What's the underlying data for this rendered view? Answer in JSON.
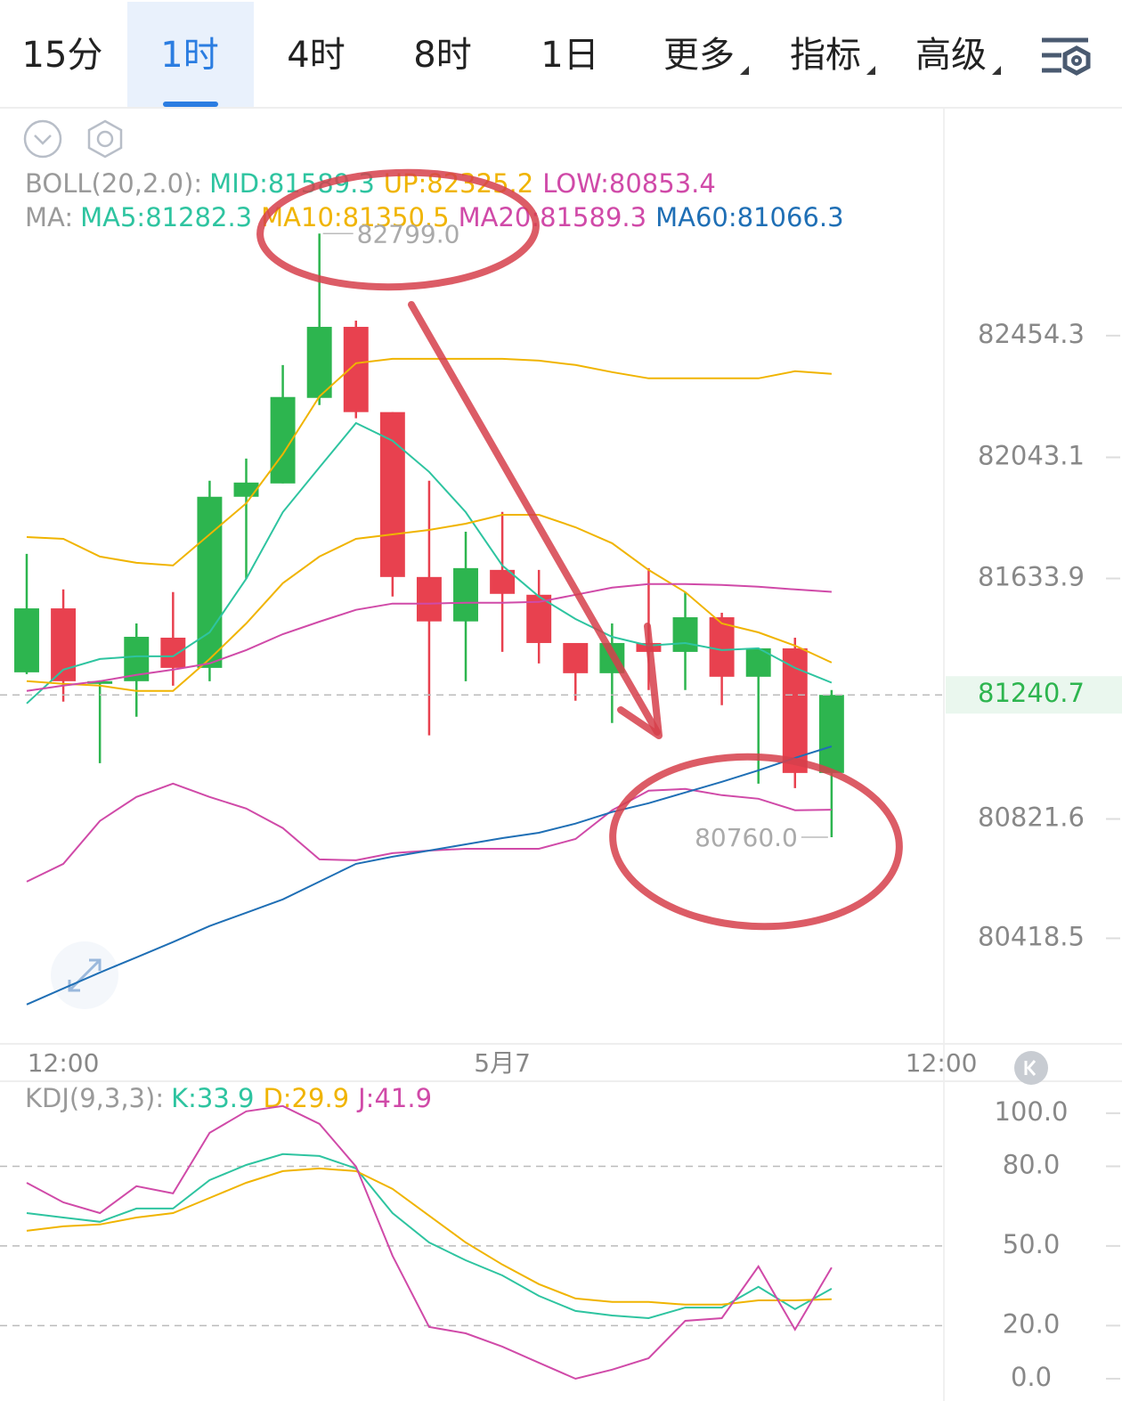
{
  "tabs": [
    {
      "label": "15分",
      "active": false,
      "dropdown": false
    },
    {
      "label": "1时",
      "active": true,
      "dropdown": false
    },
    {
      "label": "4时",
      "active": false,
      "dropdown": false
    },
    {
      "label": "8时",
      "active": false,
      "dropdown": false
    },
    {
      "label": "1日",
      "active": false,
      "dropdown": false
    },
    {
      "label": "更多",
      "active": false,
      "dropdown": true
    },
    {
      "label": "指标",
      "active": false,
      "dropdown": true
    },
    {
      "label": "高级",
      "active": false,
      "dropdown": true
    }
  ],
  "chart_data": [
    {
      "type": "candlestick",
      "legend": [
        {
          "title": "BOLL(20,2.0):",
          "items": [
            {
              "name": "MID:81589.3",
              "color": "#2ec4a0"
            },
            {
              "name": "UP:82325.2",
              "color": "#f0b400",
              "values": [
                81774,
                81768,
                81708,
                81687,
                81678,
                81783,
                81888,
                82054,
                82249,
                82361,
                82376,
                82376,
                82376,
                82376,
                82370,
                82355,
                82331,
                82310,
                82310,
                82310,
                82310,
                82334,
                82325
              ]
            },
            {
              "name": "LOW:80853.4",
              "color": "#d04aa8",
              "values": [
                80610,
                80670,
                80815,
                80896,
                80941,
                80896,
                80857,
                80791,
                80685,
                80682,
                80706,
                80715,
                80721,
                80721,
                80721,
                80754,
                80851,
                80917,
                80923,
                80902,
                80890,
                80851,
                80853
              ]
            }
          ]
        },
        {
          "title": "MA:",
          "items": [
            {
              "name": "MA5:81282.3",
              "color": "#2ec4a0",
              "values": [
                81212,
                81326,
                81362,
                81371,
                81371,
                81452,
                81633,
                81858,
                82009,
                82159,
                82099,
                81994,
                81858,
                81678,
                81573,
                81497,
                81437,
                81407,
                81416,
                81392,
                81398,
                81332,
                81282
              ]
            },
            {
              "name": "MA10:81350.5",
              "color": "#f0b400",
              "values": [
                81287,
                81278,
                81272,
                81254,
                81254,
                81362,
                81482,
                81618,
                81708,
                81768,
                81783,
                81798,
                81819,
                81849,
                81849,
                81807,
                81753,
                81663,
                81588,
                81482,
                81452,
                81407,
                81350
              ]
            },
            {
              "name": "MA20:81589.3",
              "color": "#d04aa8",
              "values": [
                81254,
                81272,
                81287,
                81308,
                81326,
                81347,
                81392,
                81446,
                81488,
                81528,
                81549,
                81549,
                81552,
                81552,
                81555,
                81579,
                81603,
                81615,
                81615,
                81612,
                81606,
                81597,
                81589
              ]
            },
            {
              "name": "MA60:81066.3",
              "color": "#1f6fb5",
              "values": [
                80195,
                80249,
                80303,
                80354,
                80406,
                80460,
                80505,
                80550,
                80610,
                80670,
                80694,
                80715,
                80736,
                80757,
                80775,
                80806,
                80845,
                80875,
                80911,
                80947,
                80986,
                81028,
                81067
              ]
            }
          ]
        }
      ],
      "open": [
        81317,
        81533,
        81278,
        81287,
        81434,
        81332,
        81910,
        81955,
        82244,
        82484,
        82196,
        81639,
        81489,
        81663,
        81579,
        81416,
        81314,
        81416,
        81386,
        81503,
        81302,
        81398,
        80977
      ],
      "high": [
        81717,
        81597,
        81290,
        81482,
        81588,
        81964,
        82039,
        82355,
        82799,
        82505,
        82196,
        81964,
        81792,
        81859,
        81663,
        81416,
        81482,
        81669,
        81588,
        81518,
        81398,
        81434,
        81257
      ],
      "low": [
        81311,
        81218,
        81010,
        81167,
        81272,
        81287,
        81633,
        81955,
        82220,
        82175,
        81573,
        81104,
        81287,
        81386,
        81347,
        81221,
        81146,
        81257,
        81257,
        81206,
        80941,
        80926,
        80760
      ],
      "close": [
        81533,
        81287,
        81287,
        81437,
        81332,
        81910,
        81958,
        82247,
        82484,
        82196,
        81639,
        81489,
        81669,
        81582,
        81416,
        81314,
        81416,
        81386,
        81503,
        81302,
        81398,
        80977,
        81240.7
      ],
      "up_color": "#2db54f",
      "down_color": "#e8414f",
      "high_label": "82799.0",
      "low_label": "80760.0",
      "xlim": [
        -0.73,
        25.07
      ],
      "xticks": [
        {
          "value": 1,
          "label": "12:00"
        },
        {
          "value": 13,
          "label": "5月7"
        },
        {
          "value": 25,
          "label": "12:00"
        }
      ],
      "ylim": [
        80062,
        83221
      ],
      "yticks": [
        82454.3,
        82043.1,
        81633.9,
        80821.6,
        80418.5
      ]
    },
    {
      "type": "line",
      "title": "KDJ(9,3,3):",
      "series": [
        {
          "name": "K:33.9",
          "color": "#2ec4a0",
          "values": [
            62.4,
            60.7,
            59.1,
            64.1,
            64.1,
            74.8,
            80.5,
            84.6,
            83.9,
            79.2,
            62.4,
            51.3,
            44.6,
            38.9,
            31.2,
            25.5,
            23.8,
            22.8,
            26.8,
            26.8,
            34.6,
            26.2,
            33.9
          ]
        },
        {
          "name": "D:29.9",
          "color": "#f0b400",
          "values": [
            55.7,
            57.4,
            58.1,
            60.7,
            62.4,
            68.1,
            73.8,
            78.2,
            79.2,
            78.2,
            71.5,
            61.4,
            51.3,
            43,
            35.6,
            30.2,
            28.9,
            28.9,
            27.9,
            27.9,
            29.5,
            29.5,
            29.9
          ]
        },
        {
          "name": "J:41.9",
          "color": "#d04aa8",
          "values": [
            73.8,
            66.4,
            62.4,
            72.5,
            69.8,
            92.6,
            100.7,
            102.7,
            96,
            79.9,
            46.3,
            19.5,
            17.1,
            12.1,
            6,
            0,
            3.4,
            7.7,
            21.8,
            22.8,
            42.3,
            18.5,
            41.9
          ]
        }
      ],
      "xlim": [
        -0.73,
        25.07
      ],
      "ylim": [
        -8.4,
        111.7
      ],
      "yticks": [
        {
          "value": 0,
          "label": "0.0"
        },
        {
          "value": 20,
          "label": "20.0"
        },
        {
          "value": 50,
          "label": "50.0"
        },
        {
          "value": 80,
          "label": "80.0"
        },
        {
          "value": 100,
          "label": "100.0"
        }
      ],
      "grid": true
    }
  ]
}
